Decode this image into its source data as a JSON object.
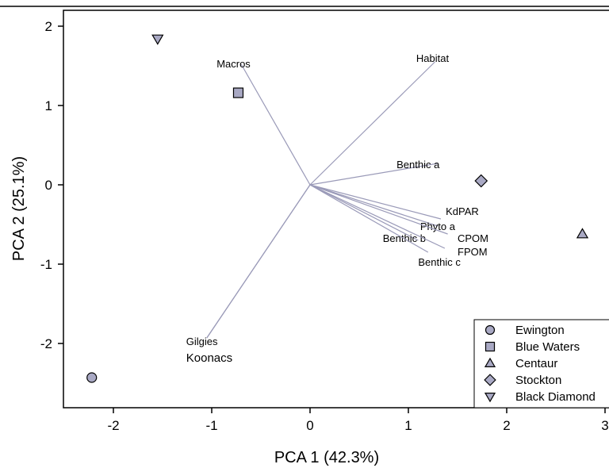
{
  "chart_data": {
    "type": "scatter",
    "xlabel": "PCA 1 (42.3%)",
    "ylabel": "PCA 2 (25.1%)",
    "xlim": [
      -2.5,
      3.0
    ],
    "ylim": [
      -2.8,
      2.2
    ],
    "xticks": [
      "-2",
      "-1",
      "0",
      "1",
      "2",
      "3"
    ],
    "xtick_values": [
      -2,
      -1,
      0,
      1,
      2,
      3
    ],
    "yticks": [
      "2",
      "1",
      "0",
      "-1",
      "-2"
    ],
    "ytick_values": [
      2,
      1,
      0,
      -1,
      -2
    ],
    "grid": false,
    "legend_position": "bottom-right",
    "marker_color": "#a9a9c4",
    "vector_color": "#9a9ab8",
    "sites": [
      {
        "name": "Ewington",
        "marker": "circle",
        "x": -2.22,
        "y": -2.43
      },
      {
        "name": "Blue Waters",
        "marker": "square",
        "x": -0.73,
        "y": 1.16
      },
      {
        "name": "Centaur",
        "marker": "triangle-up",
        "x": 2.77,
        "y": -0.62
      },
      {
        "name": "Stockton",
        "marker": "diamond",
        "x": 1.74,
        "y": 0.05
      },
      {
        "name": "Black Diamond",
        "marker": "triangle-down",
        "x": -1.55,
        "y": 1.84
      }
    ],
    "vectors": [
      {
        "label": "Habitat",
        "x": 1.27,
        "y": 1.55,
        "label_x": 1.08,
        "label_y": 1.6,
        "anchor": "start"
      },
      {
        "label": "Macros",
        "x": -0.7,
        "y": 1.52,
        "label_x": -0.95,
        "label_y": 1.53,
        "anchor": "start"
      },
      {
        "label": "Benthic a",
        "x": 1.3,
        "y": 0.27,
        "label_x": 0.88,
        "label_y": 0.26,
        "anchor": "start"
      },
      {
        "label": "KdPAR",
        "x": 1.33,
        "y": -0.43,
        "label_x": 1.38,
        "label_y": -0.33,
        "anchor": "start"
      },
      {
        "label": "Phyto a",
        "x": 1.3,
        "y": -0.52,
        "label_x": 1.12,
        "label_y": -0.52,
        "anchor": "start"
      },
      {
        "label": "CPOM",
        "x": 1.4,
        "y": -0.62,
        "label_x": 1.5,
        "label_y": -0.67,
        "anchor": "start"
      },
      {
        "label": "Benthic b",
        "x": 1.1,
        "y": -0.7,
        "label_x": 0.74,
        "label_y": -0.67,
        "anchor": "start"
      },
      {
        "label": "FPOM",
        "x": 1.37,
        "y": -0.8,
        "label_x": 1.5,
        "label_y": -0.84,
        "anchor": "start"
      },
      {
        "label": "Benthic c",
        "x": 1.2,
        "y": -0.85,
        "label_x": 1.1,
        "label_y": -0.97,
        "anchor": "start"
      },
      {
        "label": "Gilgies",
        "x": -1.05,
        "y": -1.93,
        "label_x": -1.26,
        "label_y": -1.97,
        "anchor": "start"
      },
      {
        "label": "Koonacs",
        "x": -1.05,
        "y": -1.93,
        "label_x": -1.26,
        "label_y": -2.18,
        "anchor": "start",
        "big": true
      }
    ]
  }
}
